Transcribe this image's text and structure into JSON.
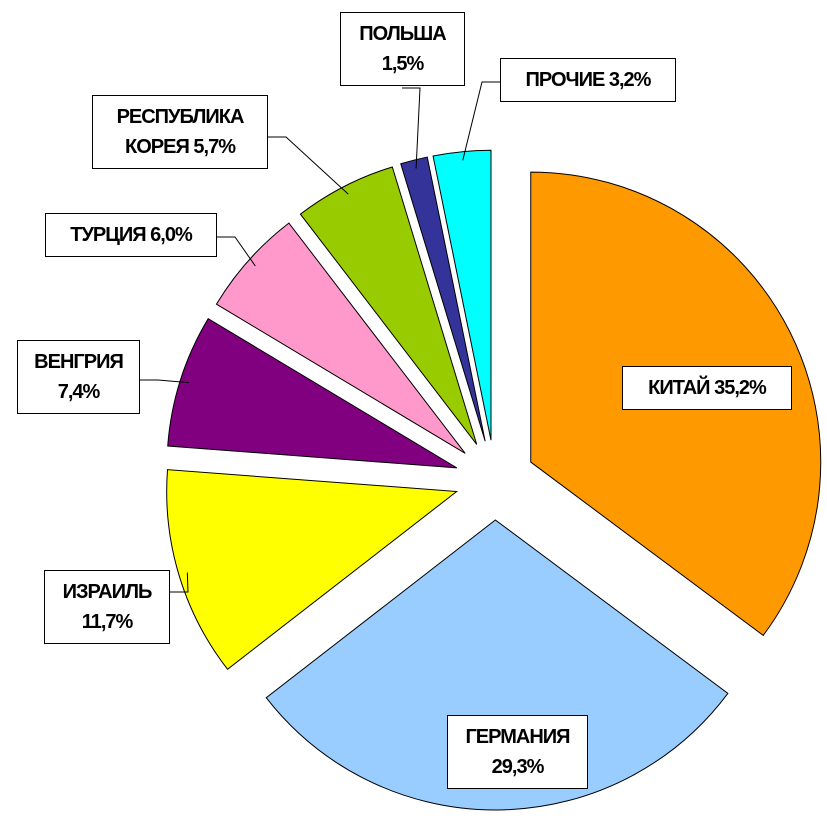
{
  "chart_data": {
    "type": "pie",
    "categories": [
      "КИТАЙ",
      "ГЕРМАНИЯ",
      "ИЗРАИЛЬ",
      "ВЕНГРИЯ",
      "ТУРЦИЯ",
      "РЕСПУБЛИКА КОРЕЯ",
      "ПОЛЬША",
      "ПРОЧИЕ"
    ],
    "values": [
      35.2,
      29.3,
      11.7,
      7.4,
      6.0,
      5.7,
      1.5,
      3.2
    ],
    "value_labels": [
      "35,2%",
      "29,3%",
      "11,7%",
      "7,4%",
      "6,0%",
      "5,7%",
      "1,5%",
      "3,2%"
    ],
    "colors": [
      "#ff9900",
      "#99ccff",
      "#ffff00",
      "#800080",
      "#ff99cc",
      "#99cc00",
      "#333399",
      "#00ffff"
    ]
  }
}
